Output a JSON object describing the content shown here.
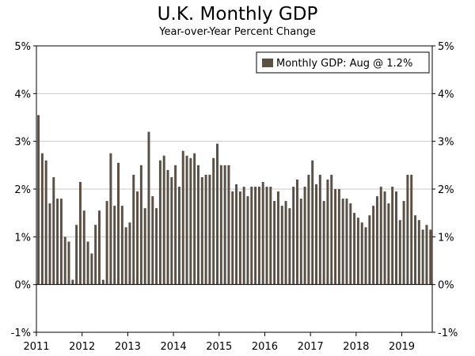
{
  "chart_data": {
    "type": "bar",
    "title": "U.K. Monthly GDP",
    "subtitle": "Year-over-Year Percent Change",
    "xlabel": "",
    "ylabel": "",
    "ylim": [
      -1,
      5
    ],
    "y_ticks": [
      -1,
      0,
      1,
      2,
      3,
      4,
      5
    ],
    "y_tick_labels": [
      "-1%",
      "0%",
      "1%",
      "2%",
      "3%",
      "4%",
      "5%"
    ],
    "x_tick_labels": [
      "2011",
      "2012",
      "2013",
      "2014",
      "2015",
      "2016",
      "2017",
      "2018",
      "2019"
    ],
    "grid": true,
    "legend_position": "top-right",
    "colors": {
      "bar": "#5b5046",
      "axis": "#000000",
      "grid": "#c8c8c8"
    },
    "series": [
      {
        "name": "Monthly GDP: Aug @ 1.2%",
        "start": "2011-01",
        "values": [
          3.55,
          2.75,
          2.6,
          1.7,
          2.25,
          1.8,
          1.8,
          1.0,
          0.9,
          0.1,
          1.25,
          2.15,
          1.55,
          0.9,
          0.65,
          1.25,
          1.55,
          0.1,
          1.75,
          2.75,
          1.65,
          2.55,
          1.65,
          1.2,
          1.3,
          2.3,
          1.95,
          2.5,
          1.6,
          3.2,
          1.85,
          1.6,
          2.6,
          2.7,
          2.4,
          2.25,
          2.5,
          2.05,
          2.8,
          2.7,
          2.65,
          2.75,
          2.5,
          2.25,
          2.3,
          2.3,
          2.65,
          2.95,
          2.5,
          2.5,
          2.5,
          1.95,
          2.1,
          1.95,
          2.05,
          1.85,
          2.05,
          2.05,
          2.05,
          2.15,
          2.05,
          2.05,
          1.75,
          1.95,
          1.65,
          1.75,
          1.6,
          2.05,
          2.2,
          1.8,
          2.05,
          2.3,
          2.6,
          2.1,
          2.3,
          1.75,
          2.2,
          2.3,
          2.0,
          2.0,
          1.8,
          1.8,
          1.7,
          1.5,
          1.4,
          1.3,
          1.2,
          1.45,
          1.65,
          1.85,
          2.05,
          1.95,
          1.7,
          2.05,
          1.95,
          1.35,
          1.75,
          2.3,
          2.3,
          1.45,
          1.35,
          1.15,
          1.25,
          1.15
        ]
      }
    ]
  }
}
